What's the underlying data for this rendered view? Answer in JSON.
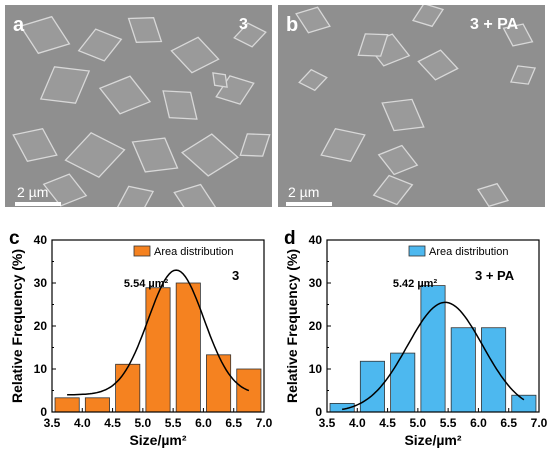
{
  "images": [
    {
      "panel_label": "a",
      "sample_label": "3",
      "scale_label": "2 µm"
    },
    {
      "panel_label": "b",
      "sample_label": "3 + PA",
      "scale_label": "2 µm"
    }
  ],
  "chart_data": [
    {
      "type": "bar",
      "panel_label": "c",
      "sample_label": "3",
      "legend": "Area distribution",
      "legend_position": "top-right",
      "bar_color": "#f58220",
      "xlabel": "Size/µm²",
      "ylabel": "Relative Frequency (%)",
      "xlim": [
        3.5,
        7.0
      ],
      "ylim": [
        0,
        40
      ],
      "xticks": [
        "3.5",
        "4.0",
        "4.5",
        "5.0",
        "5.5",
        "6.0",
        "6.5",
        "7.0"
      ],
      "yticks": [
        "0",
        "10",
        "20",
        "30",
        "40"
      ],
      "bin_width": 0.4,
      "x": [
        3.75,
        4.25,
        4.75,
        5.25,
        5.75,
        6.25,
        6.75
      ],
      "values": [
        3.3,
        3.3,
        11.1,
        28.9,
        30.0,
        13.3,
        10.0
      ],
      "fit": {
        "center": 5.55,
        "sigma": 0.46,
        "amplitude": 29.0,
        "offset": 4.0,
        "range": [
          3.75,
          6.75
        ]
      },
      "peak_label": "5.54 µm²"
    },
    {
      "type": "bar",
      "panel_label": "d",
      "sample_label": "3 + PA",
      "legend": "Area distribution",
      "legend_position": "top-right",
      "bar_color": "#4db8ef",
      "xlabel": "Size/µm²",
      "ylabel": "Relative Frequency (%)",
      "xlim": [
        3.5,
        7.0
      ],
      "ylim": [
        0,
        40
      ],
      "xticks": [
        "3.5",
        "4.0",
        "4.5",
        "5.0",
        "5.5",
        "6.0",
        "6.5",
        "7.0"
      ],
      "yticks": [
        "0",
        "10",
        "20",
        "30",
        "40"
      ],
      "bin_width": 0.4,
      "x": [
        3.75,
        4.25,
        4.75,
        5.25,
        5.75,
        6.25,
        6.75
      ],
      "values": [
        2.0,
        11.8,
        13.7,
        29.4,
        19.6,
        19.6,
        3.9
      ],
      "fit": {
        "center": 5.45,
        "sigma": 0.62,
        "amplitude": 25.5,
        "offset": 0.0,
        "range": [
          3.75,
          6.75
        ]
      },
      "peak_label": "5.42 µm²"
    }
  ]
}
